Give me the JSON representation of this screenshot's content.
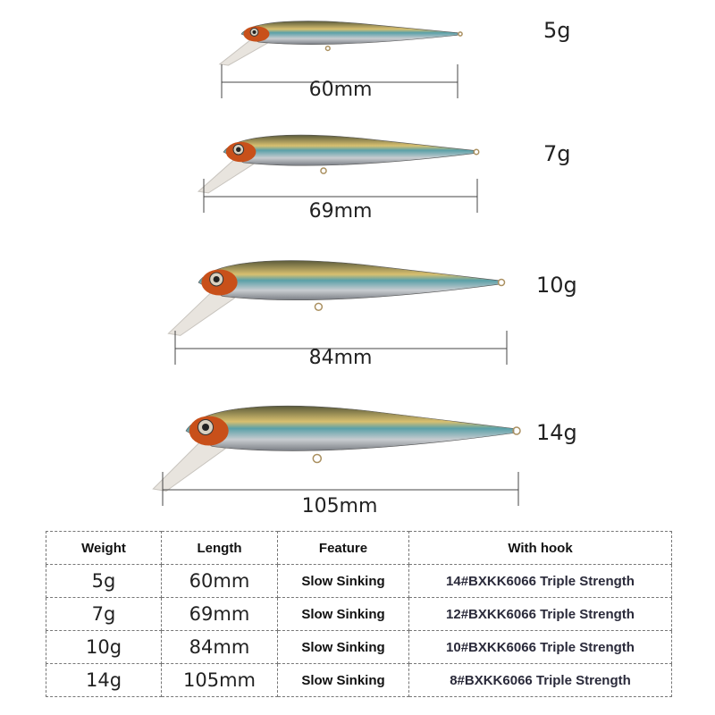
{
  "lures": [
    {
      "weight": "5g",
      "length": "60mm"
    },
    {
      "weight": "7g",
      "length": "69mm"
    },
    {
      "weight": "10g",
      "length": "84mm"
    },
    {
      "weight": "14g",
      "length": "105mm"
    }
  ],
  "colors": {
    "eye": "#c8501a",
    "back": "#5a5a3a",
    "stripe": "#5aa0a8",
    "belly": "#c8ccd0",
    "gold": "#d8c070"
  },
  "table": {
    "headers": [
      "Weight",
      "Length",
      "Feature",
      "With hook"
    ],
    "rows": [
      [
        "5g",
        "60mm",
        "Slow Sinking",
        "14#BXKK6066 Triple Strength"
      ],
      [
        "7g",
        "69mm",
        "Slow Sinking",
        "12#BXKK6066 Triple Strength"
      ],
      [
        "10g",
        "84mm",
        "Slow Sinking",
        "10#BXKK6066 Triple Strength"
      ],
      [
        "14g",
        "105mm",
        "Slow Sinking",
        "8#BXKK6066 Triple Strength"
      ]
    ]
  }
}
